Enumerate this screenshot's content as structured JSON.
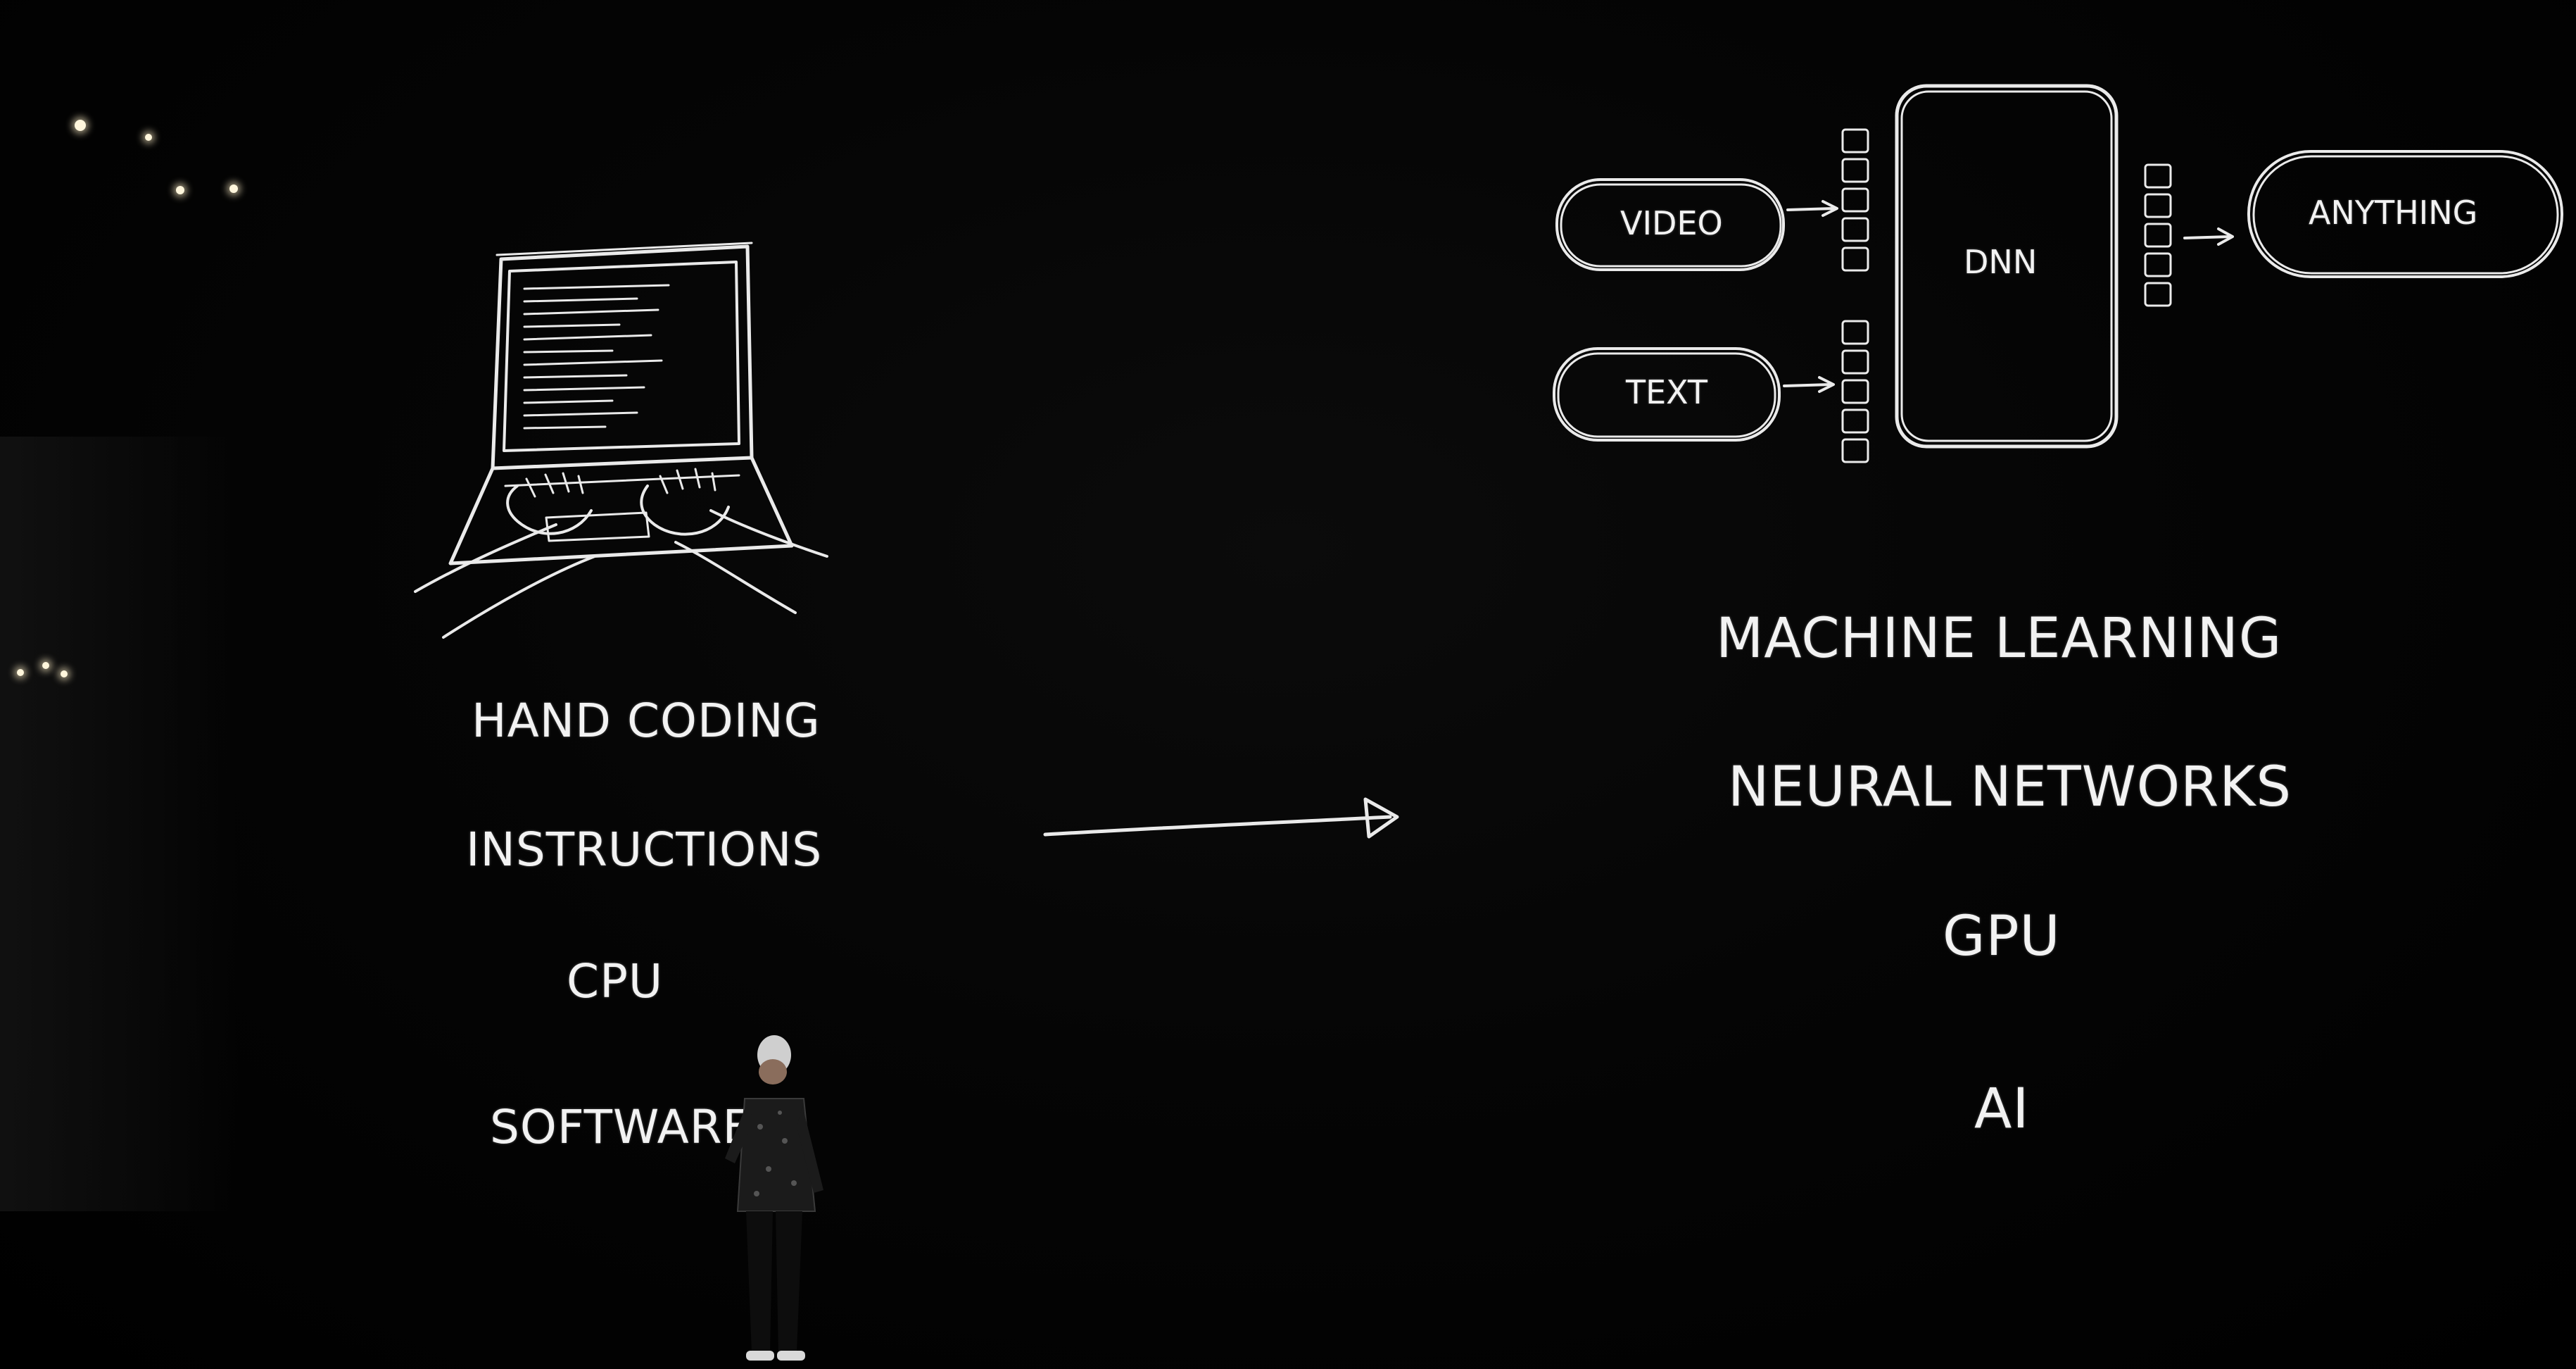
{
  "left_column": {
    "items": [
      "HAND CODING",
      "INSTRUCTIONS",
      "CPU",
      "SOFTWARE"
    ]
  },
  "right_column": {
    "items": [
      "MACHINE LEARNING",
      "NEURAL NETWORKS",
      "GPU",
      "AI"
    ]
  },
  "diagram": {
    "inputs": [
      "VIDEO",
      "TEXT"
    ],
    "model": "DNN",
    "output": "ANYTHING"
  },
  "colors": {
    "background": "#000000",
    "chalk": "#eaeaea"
  }
}
